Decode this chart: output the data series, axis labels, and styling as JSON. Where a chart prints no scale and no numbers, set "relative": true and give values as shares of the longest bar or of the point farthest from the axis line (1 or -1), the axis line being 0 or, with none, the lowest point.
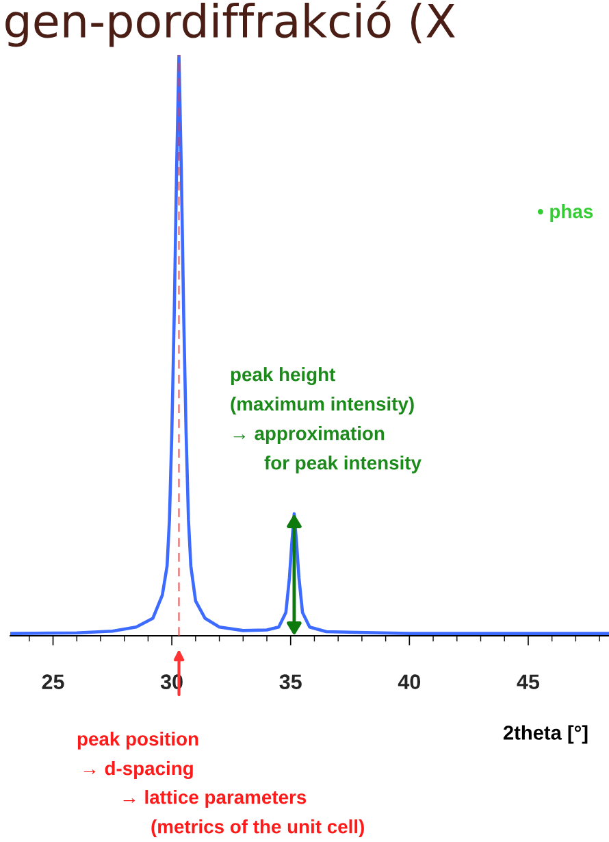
{
  "chart_data": {
    "type": "line",
    "title": "gen-pordiffrakció (X",
    "xlabel": "2theta [°]",
    "relative": true,
    "tick_labels": "x",
    "grid": false,
    "legend": false,
    "xlim": [
      23.2,
      48.4
    ],
    "xticks": [
      {
        "value": 24,
        "label": null
      },
      25,
      {
        "value": 26,
        "label": null
      },
      {
        "value": 27,
        "label": null
      },
      {
        "value": 28,
        "label": null
      },
      {
        "value": 29,
        "label": null
      },
      30,
      {
        "value": 31,
        "label": null
      },
      {
        "value": 32,
        "label": null
      },
      {
        "value": 33,
        "label": null
      },
      {
        "value": 34,
        "label": null
      },
      35,
      {
        "value": 36,
        "label": null
      },
      {
        "value": 37,
        "label": null
      },
      {
        "value": 38,
        "label": null
      },
      {
        "value": 39,
        "label": null
      },
      40,
      {
        "value": 41,
        "label": null
      },
      {
        "value": 42,
        "label": null
      },
      {
        "value": 43,
        "label": null
      },
      {
        "value": 44,
        "label": null
      },
      45,
      {
        "value": 46,
        "label": null
      },
      {
        "value": 47,
        "label": null
      },
      {
        "value": 48,
        "label": null
      }
    ],
    "series": [
      {
        "color": "#3d6bff",
        "x": [
          23.2,
          26,
          27.5,
          28.5,
          29.2,
          29.6,
          29.8,
          29.9,
          30.0,
          30.1,
          30.2,
          30.3,
          30.4,
          30.5,
          30.6,
          30.7,
          30.8,
          31.0,
          31.4,
          32,
          33,
          34,
          34.5,
          34.8,
          34.95,
          35.05,
          35.15,
          35.25,
          35.35,
          35.5,
          35.8,
          36.5,
          40,
          48.4
        ],
        "values": [
          0.004,
          0.005,
          0.008,
          0.015,
          0.03,
          0.07,
          0.12,
          0.2,
          0.35,
          0.55,
          0.8,
          1.0,
          0.8,
          0.55,
          0.35,
          0.2,
          0.12,
          0.06,
          0.03,
          0.015,
          0.009,
          0.01,
          0.015,
          0.04,
          0.1,
          0.16,
          0.21,
          0.16,
          0.1,
          0.04,
          0.015,
          0.007,
          0.004,
          0.004
        ]
      }
    ],
    "ref_lines": [
      {
        "axis": "x",
        "value": 30.3,
        "color": "#ff3333",
        "line_style": "dashed"
      }
    ],
    "annotations": [
      "peak position",
      "→ d-spacing",
      "→ lattice parameters",
      "(metrics of the unit cell)",
      "peak height",
      "(maximum intensity)",
      "→ approximation",
      "for peak intensity",
      "• phas"
    ]
  }
}
